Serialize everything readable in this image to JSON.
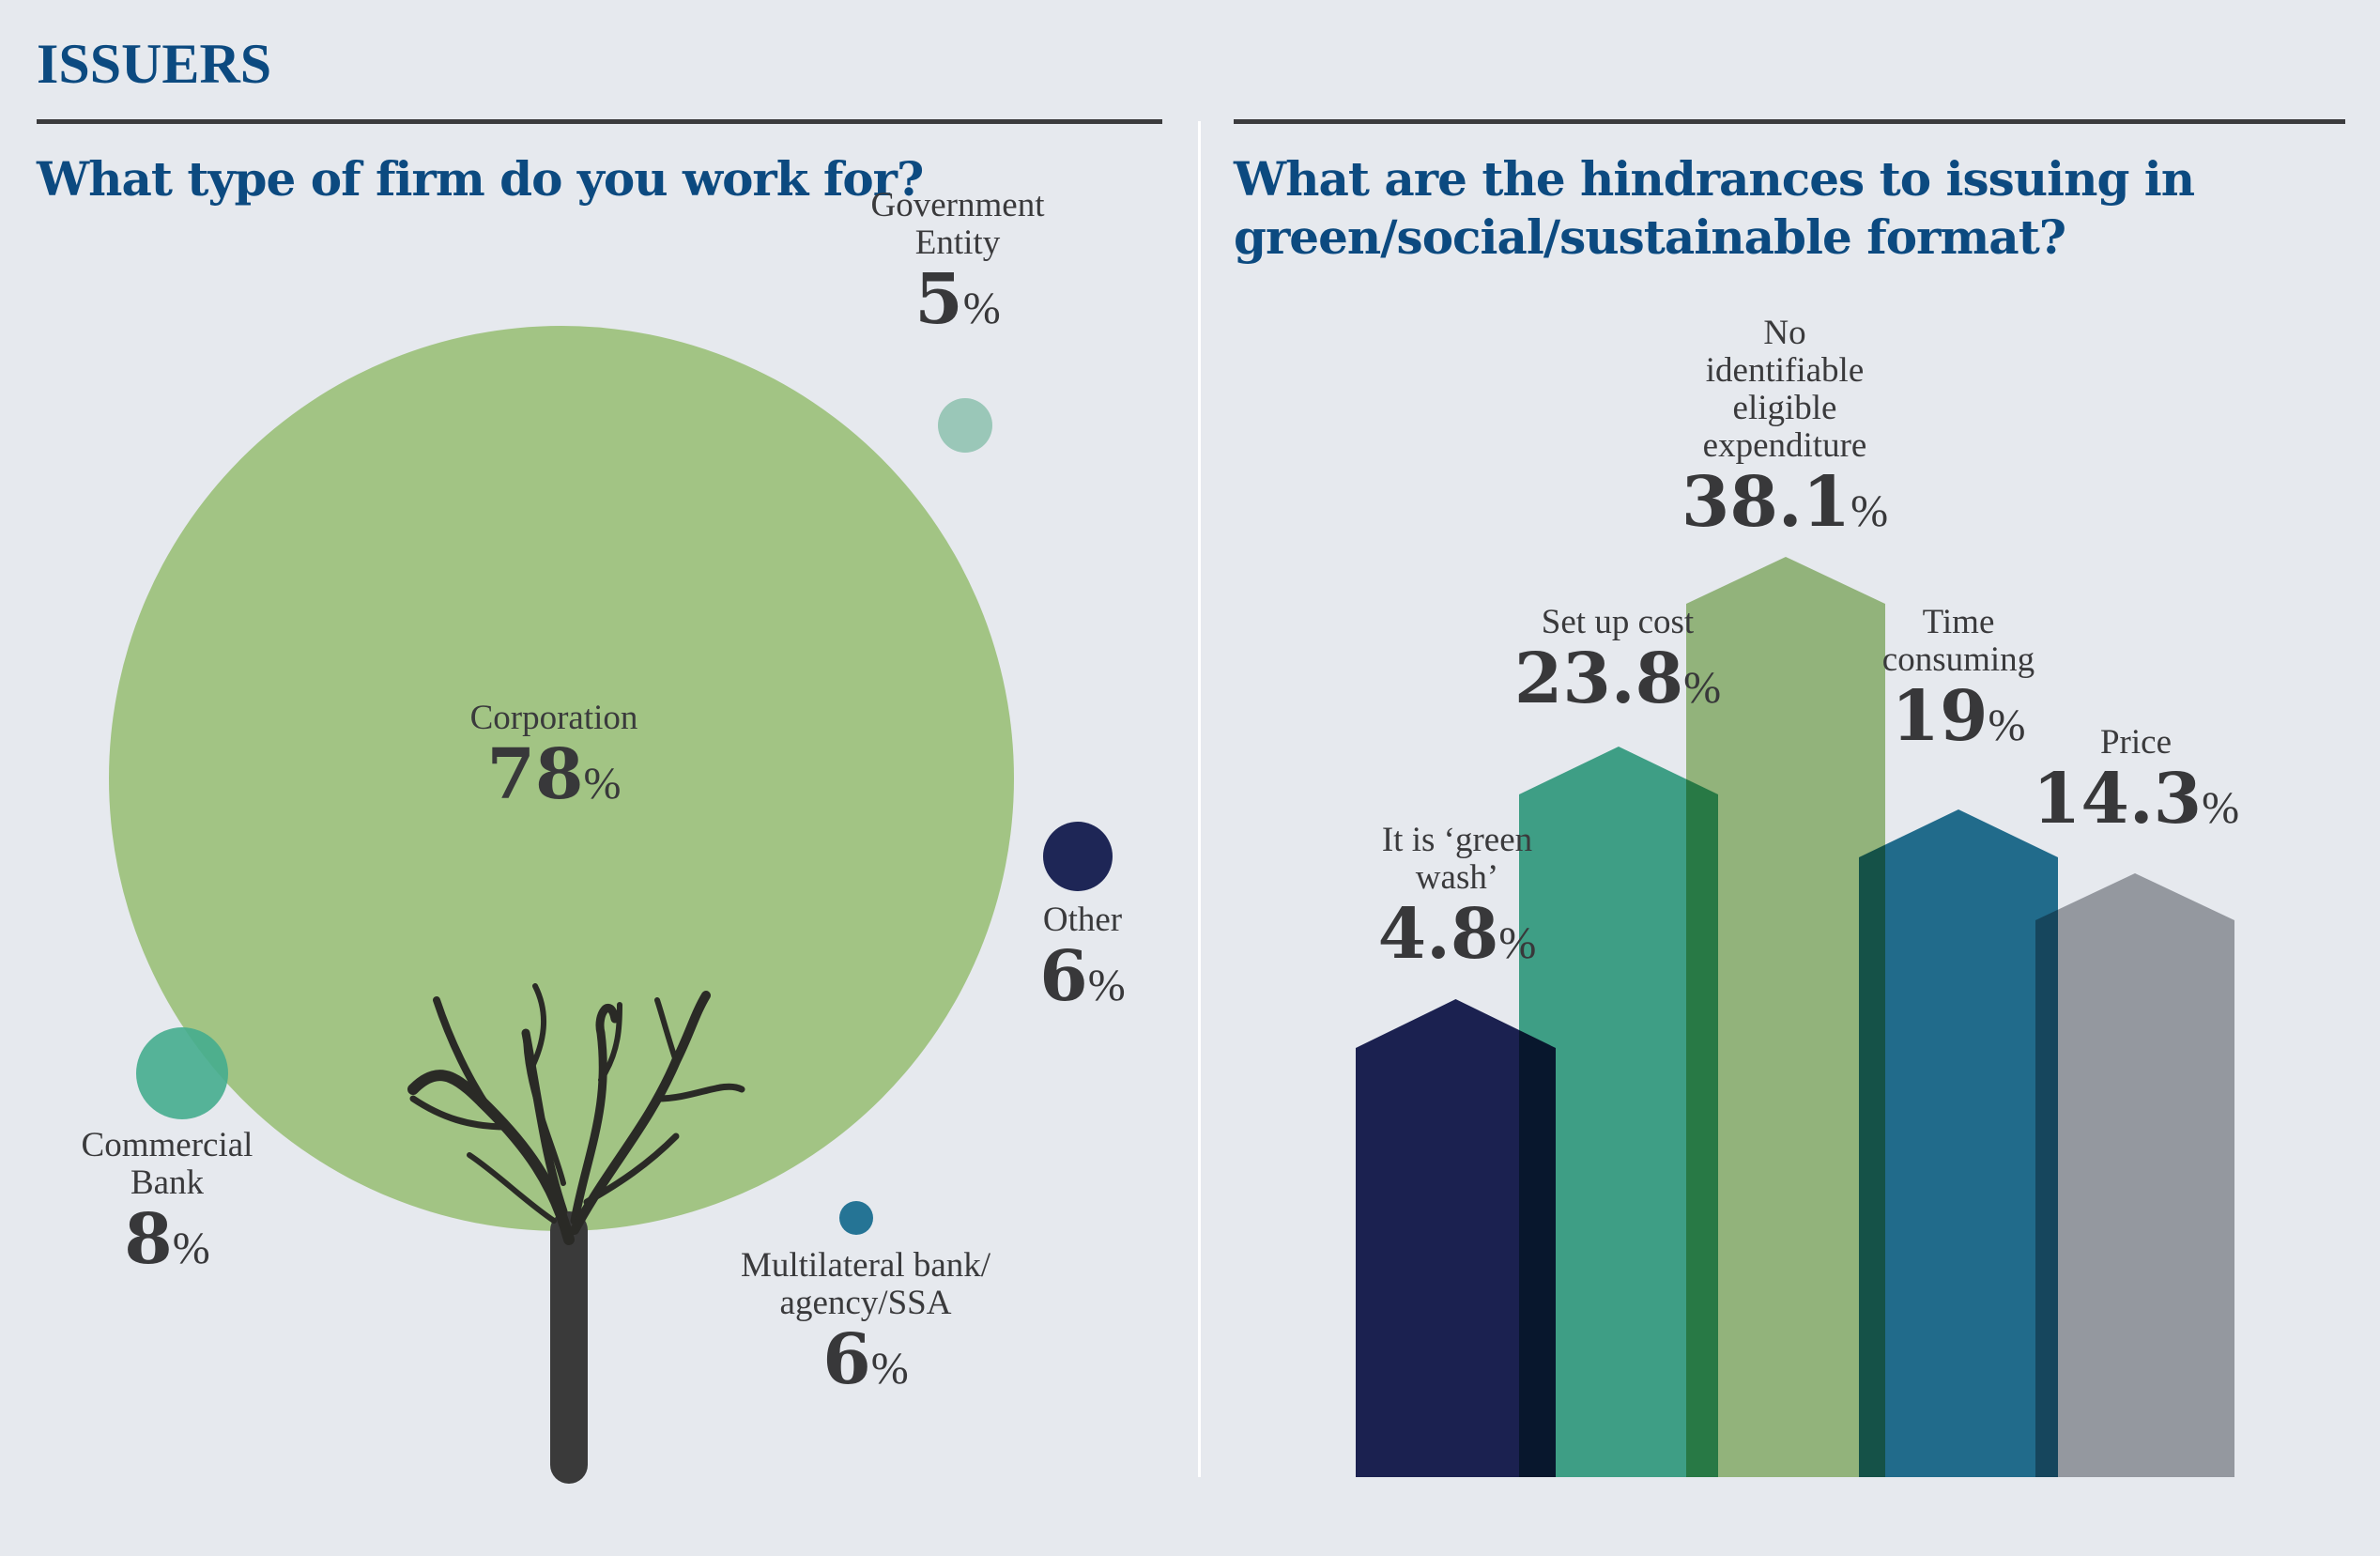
{
  "header": {
    "title": "ISSUERS"
  },
  "chart_data": [
    {
      "type": "bubble",
      "title": "What type of firm do you work for?",
      "items": [
        {
          "label": "Corporation",
          "value": 78,
          "color": "#a2c484"
        },
        {
          "label": "Government Entity",
          "value": 5,
          "color": "#9ac7b8"
        },
        {
          "label": "Other",
          "value": 6,
          "color": "#1e2656"
        },
        {
          "label": "Commercial Bank",
          "value": 8,
          "color": "#45ad8e"
        },
        {
          "label": "Multilateral bank/ agency/SSA",
          "value": 6,
          "color": "#257495"
        }
      ]
    },
    {
      "type": "bar",
      "title": "What are the hindrances to issuing in green/social/sustainable format?",
      "categories": [
        "It is ‘green wash’",
        "Set up cost",
        "No identifiable eligible expenditure",
        "Time consuming",
        "Price"
      ],
      "values": [
        4.8,
        23.8,
        38.1,
        19,
        14.3
      ],
      "colors": [
        "#1e2456",
        "#45ad8e",
        "#a2c484",
        "#247595",
        "#a4a7ab"
      ]
    }
  ],
  "labels": {
    "gov": [
      "Government",
      "Entity"
    ],
    "corp": "Corporation",
    "other": "Other",
    "bank": [
      "Commercial",
      "Bank"
    ],
    "multi": [
      "Multilateral bank/",
      "agency/SSA"
    ],
    "q2": [
      "What are the hindrances to issuing in",
      "green/social/sustainable format?"
    ],
    "greenwash": [
      "It is ‘green",
      "wash’"
    ],
    "setup": "Set up cost",
    "noid": [
      "No",
      "identifiable",
      "eligible",
      "expenditure"
    ],
    "time": [
      "Time",
      "consuming"
    ],
    "price": "Price",
    "v": {
      "corp": "78",
      "gov": "5",
      "other": "6",
      "bank": "8",
      "multi": "6",
      "greenwash": "4.8",
      "setup": "23.8",
      "noid": "38.1",
      "time": "19",
      "price": "14.3",
      "pct": "%"
    }
  }
}
